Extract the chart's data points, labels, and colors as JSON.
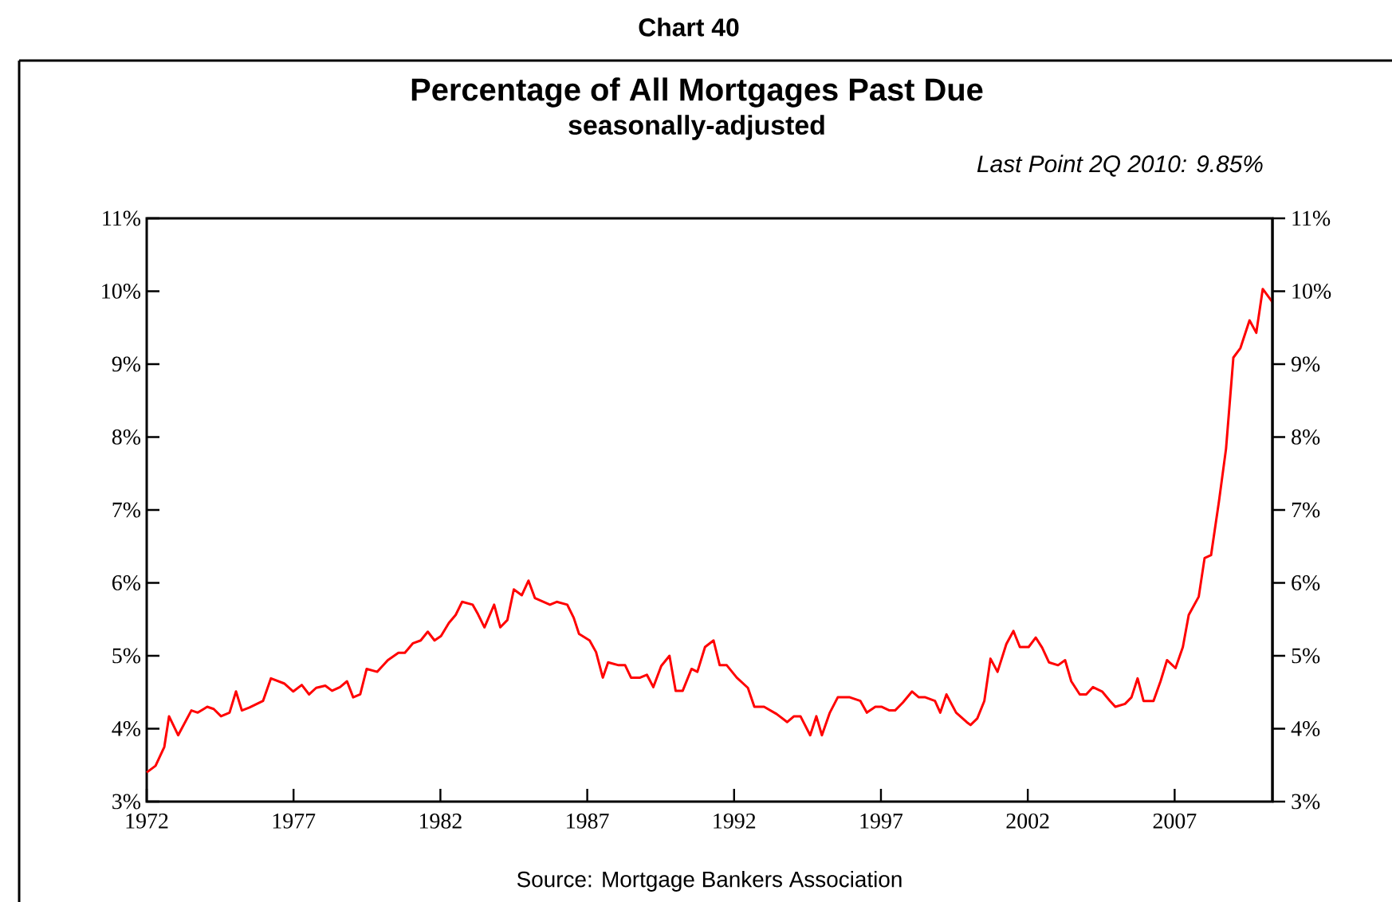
{
  "chart_data": {
    "type": "line",
    "title": "Percentage of All Mortgages Past Due",
    "subtitle": "seasonally-adjusted",
    "annotations": [
      "Chart 40",
      "Last Point 2Q 2010: 9.85%",
      "Source: Mortgage Bankers Association"
    ],
    "x": [
      1972.0,
      1972.3,
      1972.6,
      1972.76,
      1973.07,
      1973.52,
      1973.74,
      1974.06,
      1974.28,
      1974.53,
      1974.82,
      1975.04,
      1975.24,
      1975.5,
      1975.96,
      1976.23,
      1976.68,
      1976.99,
      1977.28,
      1977.53,
      1977.77,
      1978.08,
      1978.31,
      1978.58,
      1978.82,
      1979.03,
      1979.27,
      1979.49,
      1979.85,
      1980.21,
      1980.57,
      1980.79,
      1981.06,
      1981.33,
      1981.57,
      1981.8,
      1982.02,
      1982.29,
      1982.52,
      1982.74,
      1983.1,
      1983.28,
      1983.5,
      1983.83,
      1984.04,
      1984.28,
      1984.5,
      1984.77,
      1985.0,
      1985.22,
      1985.73,
      1985.96,
      1986.32,
      1986.54,
      1986.72,
      1987.08,
      1987.3,
      1987.53,
      1987.71,
      1988.07,
      1988.29,
      1988.49,
      1988.8,
      1989.03,
      1989.25,
      1989.52,
      1989.8,
      1990.01,
      1990.25,
      1990.55,
      1990.75,
      1991.01,
      1991.3,
      1991.51,
      1991.75,
      1992.09,
      1992.47,
      1992.69,
      1993.02,
      1993.45,
      1993.81,
      1994.04,
      1994.26,
      1994.59,
      1994.8,
      1994.99,
      1995.26,
      1995.53,
      1995.94,
      1996.3,
      1996.52,
      1996.81,
      1997.03,
      1997.29,
      1997.48,
      1997.75,
      1998.06,
      1998.29,
      1998.51,
      1998.84,
      1999.02,
      1999.23,
      1999.56,
      1999.92,
      2000.05,
      2000.28,
      2000.52,
      2000.73,
      2000.97,
      2001.27,
      2001.51,
      2001.73,
      2002.03,
      2002.27,
      2002.49,
      2002.72,
      2003.03,
      2003.27,
      2003.48,
      2003.77,
      2003.99,
      2004.22,
      2004.53,
      2004.8,
      2004.98,
      2005.31,
      2005.53,
      2005.74,
      2005.94,
      2006.28,
      2006.52,
      2006.74,
      2007.03,
      2007.28,
      2007.48,
      2007.82,
      2008.02,
      2008.24,
      2008.51,
      2008.75,
      2009.0,
      2009.24,
      2009.55,
      2009.78,
      2010.0,
      2010.33
    ],
    "series": [
      {
        "color": "#ff0000",
        "values": [
          3.4,
          3.49,
          3.75,
          4.17,
          3.91,
          4.25,
          4.22,
          4.3,
          4.27,
          4.17,
          4.22,
          4.51,
          4.25,
          4.29,
          4.38,
          4.69,
          4.62,
          4.51,
          4.6,
          4.47,
          4.56,
          4.59,
          4.52,
          4.57,
          4.65,
          4.43,
          4.47,
          4.82,
          4.78,
          4.94,
          5.04,
          5.04,
          5.17,
          5.21,
          5.33,
          5.21,
          5.27,
          5.45,
          5.56,
          5.74,
          5.7,
          5.57,
          5.39,
          5.7,
          5.39,
          5.49,
          5.91,
          5.83,
          6.03,
          5.79,
          5.7,
          5.74,
          5.7,
          5.52,
          5.3,
          5.21,
          5.05,
          4.7,
          4.91,
          4.87,
          4.87,
          4.7,
          4.7,
          4.74,
          4.57,
          4.86,
          5.0,
          4.52,
          4.52,
          4.82,
          4.78,
          5.12,
          5.21,
          4.87,
          4.87,
          4.7,
          4.56,
          4.3,
          4.3,
          4.2,
          4.09,
          4.17,
          4.17,
          3.91,
          4.17,
          3.91,
          4.22,
          4.43,
          4.43,
          4.38,
          4.22,
          4.3,
          4.3,
          4.25,
          4.25,
          4.36,
          4.51,
          4.43,
          4.43,
          4.38,
          4.22,
          4.47,
          4.22,
          4.09,
          4.05,
          4.14,
          4.38,
          4.96,
          4.78,
          5.16,
          5.34,
          5.12,
          5.12,
          5.25,
          5.11,
          4.91,
          4.87,
          4.94,
          4.65,
          4.47,
          4.47,
          4.57,
          4.51,
          4.38,
          4.3,
          4.34,
          4.43,
          4.69,
          4.38,
          4.38,
          4.65,
          4.94,
          4.83,
          5.12,
          5.56,
          5.81,
          6.34,
          6.38,
          7.12,
          7.84,
          9.09,
          9.22,
          9.6,
          9.43,
          10.03,
          9.85
        ]
      }
    ],
    "xlim": [
      1972,
      2010.33
    ],
    "xticks": [
      1972,
      1977,
      1982,
      1987,
      1992,
      1997,
      2002,
      2007
    ],
    "ylim": [
      3,
      11
    ],
    "yticks": [
      {
        "value": 3,
        "label": "3%"
      },
      {
        "value": 4,
        "label": "4%"
      },
      {
        "value": 5,
        "label": "5%"
      },
      {
        "value": 6,
        "label": "6%"
      },
      {
        "value": 7,
        "label": "7%"
      },
      {
        "value": 8,
        "label": "8%"
      },
      {
        "value": 9,
        "label": "9%"
      },
      {
        "value": 10,
        "label": "10%"
      },
      {
        "value": 11,
        "label": "11%"
      }
    ],
    "y2lim": [
      3,
      11
    ],
    "y2ticks": [
      {
        "value": 3,
        "label": "3%"
      },
      {
        "value": 4,
        "label": "4%"
      },
      {
        "value": 5,
        "label": "5%"
      },
      {
        "value": 6,
        "label": "6%"
      },
      {
        "value": 7,
        "label": "7%"
      },
      {
        "value": 8,
        "label": "8%"
      },
      {
        "value": 9,
        "label": "9%"
      },
      {
        "value": 10,
        "label": "10%"
      },
      {
        "value": 11,
        "label": "11%"
      }
    ],
    "grid": false,
    "marker": "none",
    "line_style": "solid"
  }
}
